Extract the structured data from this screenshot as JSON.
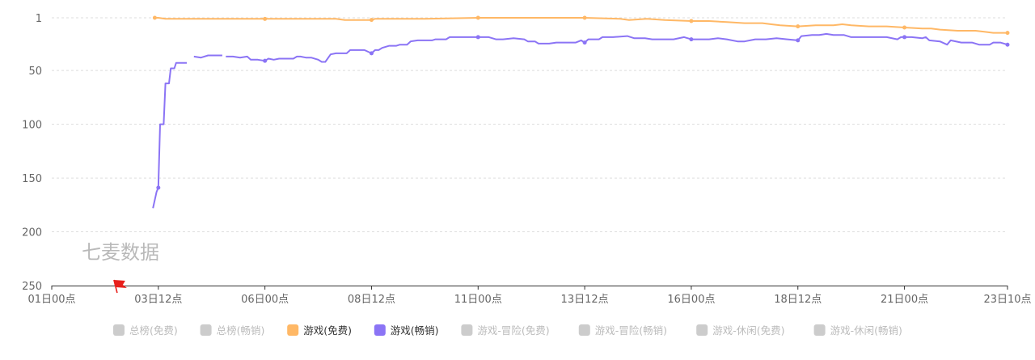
{
  "watermark": "七麦数据",
  "colors": {
    "free_game": "#ffb866",
    "paid_game": "#8b74f5",
    "inactive": "#cccccc",
    "grid": "#dddddd",
    "axis": "#333333",
    "flag": "#e8201c"
  },
  "chart_data": {
    "type": "line",
    "title": "",
    "xlabel": "",
    "ylabel": "",
    "y_inverted": true,
    "ylim": [
      1,
      250
    ],
    "y_ticks": [
      1,
      50,
      100,
      150,
      200,
      250
    ],
    "x_range_hours": [
      0,
      538
    ],
    "x_ticks": [
      {
        "label": "01日00点",
        "hour": 0
      },
      {
        "label": "03日12点",
        "hour": 60
      },
      {
        "label": "06日00点",
        "hour": 120
      },
      {
        "label": "08日12点",
        "hour": 180
      },
      {
        "label": "11日00点",
        "hour": 240
      },
      {
        "label": "13日12点",
        "hour": 300
      },
      {
        "label": "16日00点",
        "hour": 360
      },
      {
        "label": "18日12点",
        "hour": 420
      },
      {
        "label": "21日00点",
        "hour": 480
      },
      {
        "label": "23日10点",
        "hour": 538
      }
    ],
    "grid": true,
    "legend_position": "bottom",
    "legend": [
      {
        "name": "总榜(免费)",
        "active": false
      },
      {
        "name": "总榜(畅销)",
        "active": false
      },
      {
        "name": "游戏(免费)",
        "active": true,
        "series": 0
      },
      {
        "name": "游戏(畅销)",
        "active": true,
        "series": 1
      },
      {
        "name": "游戏-冒险(免费)",
        "active": false
      },
      {
        "name": "游戏-冒险(畅销)",
        "active": false
      },
      {
        "name": "游戏-休闲(免费)",
        "active": false
      },
      {
        "name": "游戏-休闲(畅销)",
        "active": false
      }
    ],
    "series": [
      {
        "name": "游戏(免费)",
        "color": "#ffb866",
        "points": [
          [
            58,
            1
          ],
          [
            60,
            1
          ],
          [
            64,
            2
          ],
          [
            90,
            2
          ],
          [
            120,
            2
          ],
          [
            160,
            2
          ],
          [
            165,
            3
          ],
          [
            180,
            3
          ],
          [
            182,
            2
          ],
          [
            210,
            2
          ],
          [
            240,
            1
          ],
          [
            270,
            1
          ],
          [
            300,
            1
          ],
          [
            320,
            2
          ],
          [
            325,
            3
          ],
          [
            335,
            2
          ],
          [
            345,
            3
          ],
          [
            360,
            4
          ],
          [
            370,
            4
          ],
          [
            380,
            5
          ],
          [
            390,
            6
          ],
          [
            400,
            6
          ],
          [
            405,
            7
          ],
          [
            410,
            8
          ],
          [
            420,
            9
          ],
          [
            430,
            8
          ],
          [
            440,
            8
          ],
          [
            445,
            7
          ],
          [
            450,
            8
          ],
          [
            460,
            9
          ],
          [
            470,
            9
          ],
          [
            480,
            10
          ],
          [
            490,
            11
          ],
          [
            495,
            11
          ],
          [
            500,
            12
          ],
          [
            510,
            13
          ],
          [
            520,
            13
          ],
          [
            525,
            14
          ],
          [
            530,
            15
          ],
          [
            538,
            15
          ]
        ],
        "markers": [
          [
            58,
            1
          ],
          [
            120,
            2
          ],
          [
            180,
            3
          ],
          [
            240,
            1
          ],
          [
            300,
            1
          ],
          [
            360,
            4
          ],
          [
            420,
            9
          ],
          [
            480,
            10
          ],
          [
            538,
            15
          ]
        ]
      },
      {
        "name": "游戏(畅销)",
        "color": "#8b74f5",
        "segments": [
          [
            [
              57,
              178
            ],
            [
              59,
              163
            ],
            [
              60,
              159
            ],
            [
              61,
              100
            ],
            [
              63,
              100
            ],
            [
              64,
              62
            ],
            [
              66,
              62
            ],
            [
              67,
              48
            ],
            [
              69,
              48
            ],
            [
              70,
              43
            ],
            [
              76,
              43
            ]
          ],
          [
            [
              80,
              37
            ],
            [
              84,
              38
            ],
            [
              88,
              36
            ],
            [
              96,
              36
            ]
          ],
          [
            [
              98,
              37
            ],
            [
              102,
              37
            ],
            [
              106,
              38
            ],
            [
              110,
              37
            ],
            [
              112,
              40
            ],
            [
              116,
              40
            ],
            [
              120,
              41
            ],
            [
              122,
              39
            ],
            [
              125,
              40
            ],
            [
              128,
              39
            ],
            [
              136,
              39
            ],
            [
              138,
              37
            ],
            [
              140,
              37
            ],
            [
              143,
              38
            ],
            [
              146,
              38
            ],
            [
              150,
              40
            ],
            [
              152,
              42
            ],
            [
              154,
              42
            ],
            [
              157,
              35
            ],
            [
              160,
              34
            ],
            [
              166,
              34
            ],
            [
              168,
              31
            ],
            [
              176,
              31
            ],
            [
              180,
              34
            ],
            [
              182,
              31
            ],
            [
              184,
              31
            ],
            [
              186,
              29
            ],
            [
              190,
              27
            ],
            [
              194,
              27
            ],
            [
              196,
              26
            ],
            [
              200,
              26
            ],
            [
              202,
              23
            ],
            [
              206,
              22
            ],
            [
              214,
              22
            ],
            [
              216,
              21
            ],
            [
              222,
              21
            ],
            [
              224,
              19
            ],
            [
              230,
              19
            ],
            [
              234,
              19
            ],
            [
              240,
              19
            ],
            [
              246,
              19
            ],
            [
              250,
              21
            ],
            [
              254,
              21
            ],
            [
              260,
              20
            ],
            [
              266,
              21
            ],
            [
              268,
              23
            ],
            [
              272,
              23
            ],
            [
              274,
              25
            ],
            [
              280,
              25
            ],
            [
              284,
              24
            ],
            [
              286,
              24
            ],
            [
              295,
              24
            ],
            [
              298,
              22
            ],
            [
              300,
              24
            ],
            [
              302,
              21
            ],
            [
              308,
              21
            ],
            [
              310,
              19
            ],
            [
              316,
              19
            ],
            [
              324,
              18
            ],
            [
              328,
              20
            ],
            [
              334,
              20
            ],
            [
              338,
              21
            ],
            [
              350,
              21
            ],
            [
              356,
              19
            ],
            [
              360,
              21
            ],
            [
              370,
              21
            ],
            [
              375,
              20
            ],
            [
              380,
              21
            ],
            [
              386,
              23
            ],
            [
              390,
              23
            ],
            [
              396,
              21
            ],
            [
              402,
              21
            ],
            [
              408,
              20
            ],
            [
              414,
              21
            ],
            [
              420,
              22
            ],
            [
              422,
              18
            ],
            [
              428,
              17
            ],
            [
              432,
              17
            ],
            [
              436,
              16
            ],
            [
              440,
              17
            ],
            [
              446,
              17
            ],
            [
              450,
              19
            ],
            [
              470,
              19
            ],
            [
              476,
              21
            ],
            [
              478,
              19
            ],
            [
              480,
              19
            ],
            [
              484,
              19
            ],
            [
              490,
              20
            ],
            [
              492,
              19
            ],
            [
              494,
              22
            ],
            [
              500,
              23
            ],
            [
              504,
              26
            ],
            [
              506,
              22
            ],
            [
              512,
              24
            ],
            [
              518,
              24
            ],
            [
              522,
              26
            ],
            [
              528,
              26
            ],
            [
              530,
              24
            ],
            [
              534,
              24
            ],
            [
              538,
              26
            ]
          ]
        ],
        "markers": [
          [
            60,
            159
          ],
          [
            120,
            41
          ],
          [
            180,
            34
          ],
          [
            240,
            19
          ],
          [
            300,
            24
          ],
          [
            360,
            21
          ],
          [
            420,
            22
          ],
          [
            480,
            19
          ],
          [
            538,
            26
          ]
        ]
      }
    ],
    "events": [
      {
        "hour": 35,
        "type": "flag"
      }
    ]
  }
}
